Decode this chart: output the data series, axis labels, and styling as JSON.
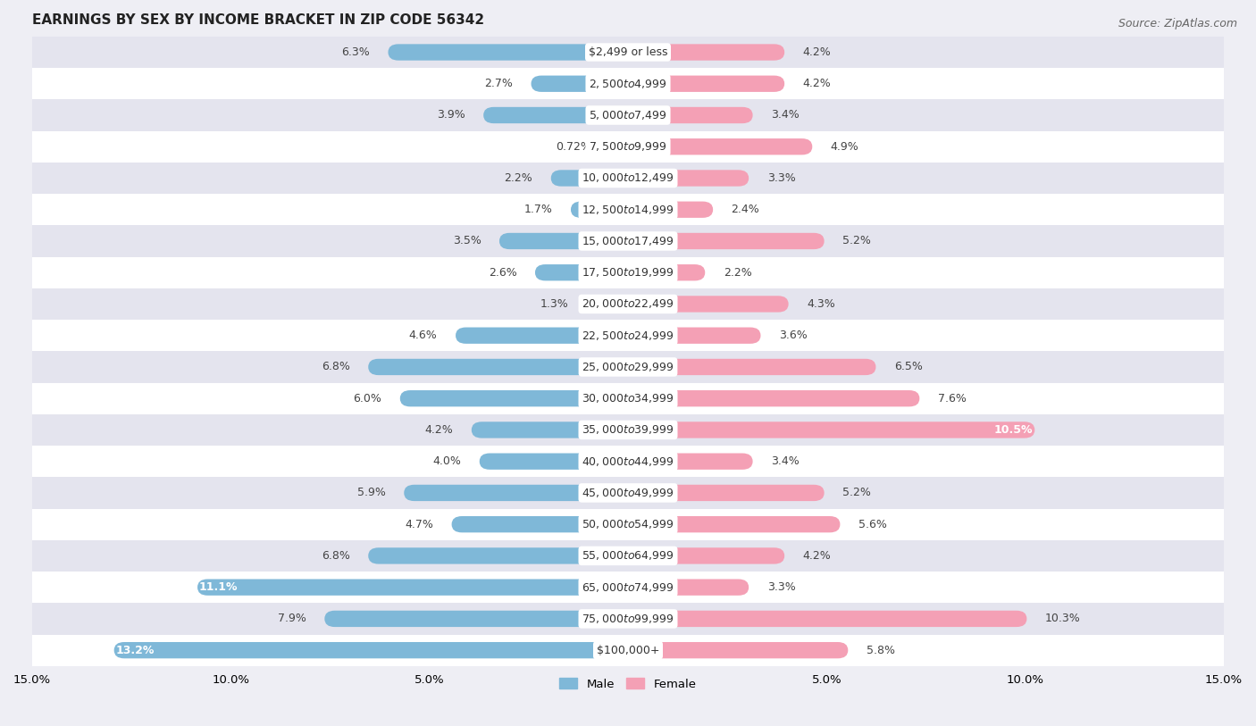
{
  "title": "EARNINGS BY SEX BY INCOME BRACKET IN ZIP CODE 56342",
  "source": "Source: ZipAtlas.com",
  "categories": [
    "$2,499 or less",
    "$2,500 to $4,999",
    "$5,000 to $7,499",
    "$7,500 to $9,999",
    "$10,000 to $12,499",
    "$12,500 to $14,999",
    "$15,000 to $17,499",
    "$17,500 to $19,999",
    "$20,000 to $22,499",
    "$22,500 to $24,999",
    "$25,000 to $29,999",
    "$30,000 to $34,999",
    "$35,000 to $39,999",
    "$40,000 to $44,999",
    "$45,000 to $49,999",
    "$50,000 to $54,999",
    "$55,000 to $64,999",
    "$65,000 to $74,999",
    "$75,000 to $99,999",
    "$100,000+"
  ],
  "male_values": [
    6.3,
    2.7,
    3.9,
    0.72,
    2.2,
    1.7,
    3.5,
    2.6,
    1.3,
    4.6,
    6.8,
    6.0,
    4.2,
    4.0,
    5.9,
    4.7,
    6.8,
    11.1,
    7.9,
    13.2
  ],
  "female_values": [
    4.2,
    4.2,
    3.4,
    4.9,
    3.3,
    2.4,
    5.2,
    2.2,
    4.3,
    3.6,
    6.5,
    7.6,
    10.5,
    3.4,
    5.2,
    5.6,
    4.2,
    3.3,
    10.3,
    5.8
  ],
  "male_color": "#7fb8d8",
  "female_color": "#f4a0b5",
  "label_color": "#444444",
  "bar_height": 0.52,
  "xlim": 15.0,
  "axis_label_fontsize": 9.5,
  "tick_fontsize": 9.0,
  "cat_fontsize": 9.0,
  "title_fontsize": 11,
  "source_fontsize": 9,
  "bg_color": "#eeeef4",
  "row_color_odd": "#ffffff",
  "row_color_even": "#e4e4ee",
  "legend_male_color": "#7fb8d8",
  "legend_female_color": "#f4a0b5",
  "inside_label_threshold": 10.5
}
